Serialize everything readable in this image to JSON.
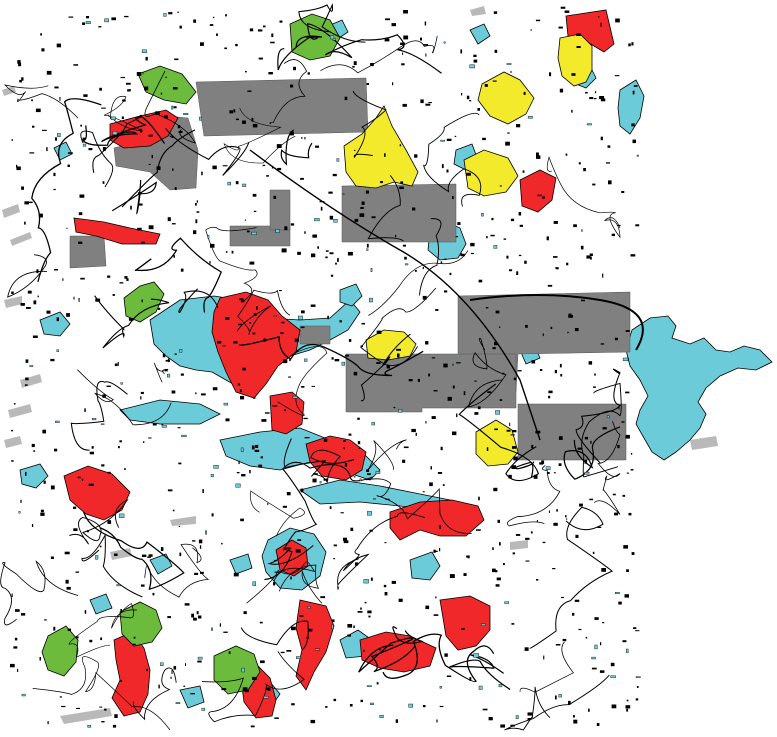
{
  "map": {
    "colors": {
      "background": "#ffffff",
      "water": "#6ccbd8",
      "gray_block": "#808080",
      "red": "#f0282a",
      "yellow": "#f3ea2c",
      "green": "#6dbb3c",
      "line": "#000000",
      "light_gray": "#b9b9b9"
    },
    "layers": [
      "lakes",
      "gray-blocks",
      "red-patches",
      "yellow-patches",
      "green-patches",
      "roads-rivers",
      "small-lakes"
    ]
  }
}
